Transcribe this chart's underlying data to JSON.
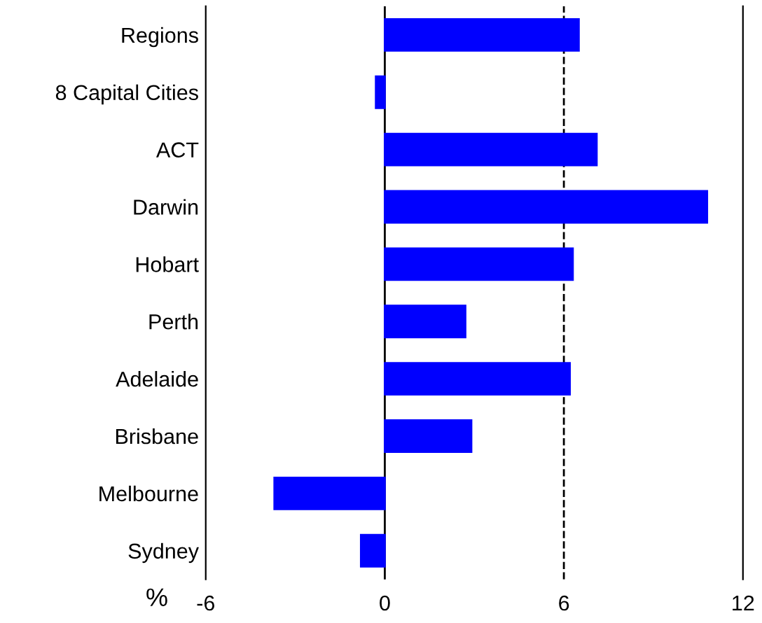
{
  "chart_data": {
    "type": "bar",
    "orientation": "horizontal",
    "xlabel": "%",
    "categories": [
      "Regions",
      "8 Capital Cities",
      "ACT",
      "Darwin",
      "Hobart",
      "Perth",
      "Adelaide",
      "Brisbane",
      "Melbourne",
      "Sydney"
    ],
    "values": [
      6.5,
      -0.3,
      7.1,
      10.8,
      6.3,
      2.7,
      6.2,
      2.9,
      -3.7,
      -0.8
    ],
    "color": "#0000ff",
    "xlim": [
      -6,
      12
    ],
    "xticks": [
      -6,
      0,
      6,
      12
    ],
    "grid": false,
    "legend": false,
    "ref_lines": [
      {
        "axis": "x",
        "value": 0,
        "line_style": "solid",
        "color": "#000000"
      },
      {
        "axis": "x",
        "value": 6,
        "line_style": "dashed",
        "color": "#000000"
      }
    ]
  }
}
